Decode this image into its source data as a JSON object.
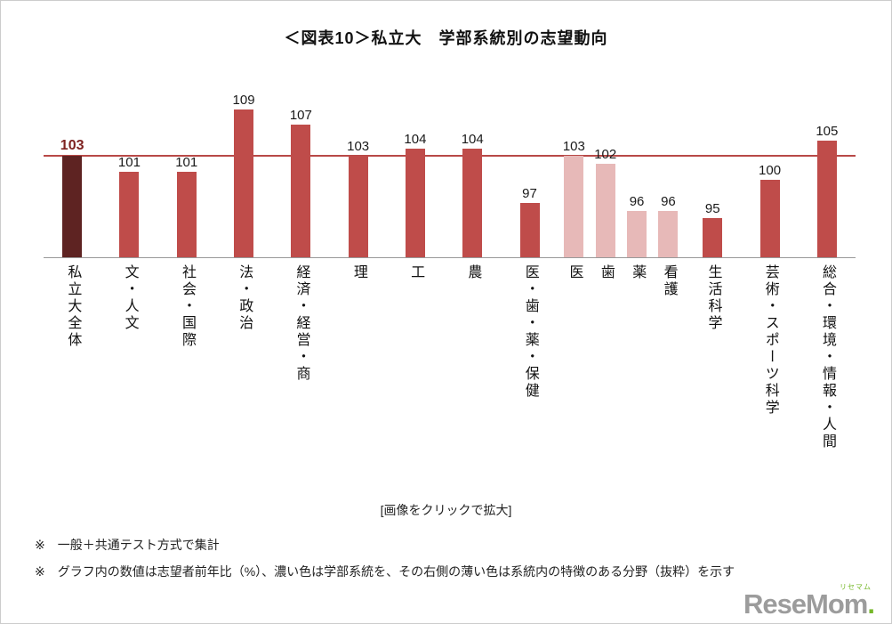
{
  "page": {
    "title": "＜図表10＞私立大　学部系統別の志望動向",
    "caption": "[画像をクリックで拡大]",
    "footnotes": [
      "※　一般＋共通テスト方式で集計",
      "※　グラフ内の数値は志望者前年比（%）、濃い色は学部系統を、その右側の薄い色は系統内の特徴のある分野（抜粋）を示す"
    ]
  },
  "chart_data": {
    "type": "bar",
    "title": "＜図表10＞私立大　学部系統別の志望動向",
    "categories": [
      "私立大全体",
      "文・人文",
      "社会・国際",
      "法・政治",
      "経済・経営・商",
      "理",
      "工",
      "農",
      "医・歯・薬・保健",
      "医",
      "歯",
      "薬",
      "看護",
      "生活科学",
      "芸術・スポーツ科学",
      "総合・環境・情報・人間"
    ],
    "values": [
      103,
      101,
      101,
      109,
      107,
      103,
      104,
      104,
      97,
      103,
      102,
      96,
      96,
      95,
      100,
      105
    ],
    "bar_roles": [
      "overall",
      "main",
      "main",
      "main",
      "main",
      "main",
      "main",
      "main",
      "main",
      "sub",
      "sub",
      "sub",
      "sub",
      "main",
      "main",
      "main"
    ],
    "reference_line": {
      "value": 103
    },
    "ylim": [
      90,
      114
    ],
    "grid": false,
    "legend": "none",
    "xlabel": "",
    "ylabel": "",
    "colors": {
      "overall": "#5e2322",
      "main": "#bf4c4a",
      "sub": "#e7b9b8",
      "reference_line": "#b84947",
      "axis": "#999999",
      "value_label": "#1a1a1a",
      "value_label_overall": "#7e2220"
    }
  },
  "logo": {
    "text": "ReseMom",
    "dot": ".",
    "ruby": "リセマム",
    "accent_color": "#76b82a",
    "text_color": "#9c9c9c"
  }
}
